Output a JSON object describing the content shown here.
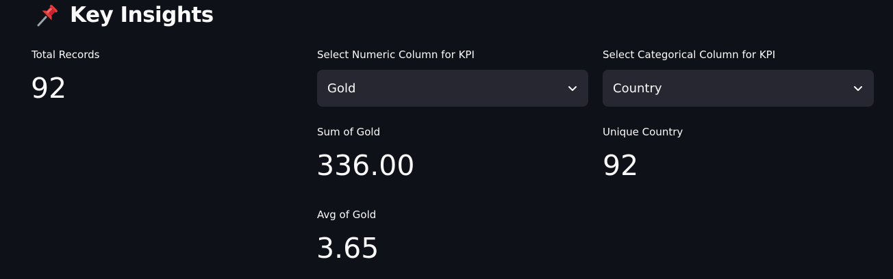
{
  "section": {
    "title": "Key Insights",
    "icon": "pushpin-icon"
  },
  "total_records": {
    "label": "Total Records",
    "value": "92"
  },
  "numeric_select": {
    "label": "Select Numeric Column for KPI",
    "selected": "Gold",
    "icon": "chevron-down-icon"
  },
  "categorical_select": {
    "label": "Select Categorical Column for KPI",
    "selected": "Country",
    "icon": "chevron-down-icon"
  },
  "sum_metric": {
    "label": "Sum of Gold",
    "value": "336.00"
  },
  "unique_metric": {
    "label": "Unique Country",
    "value": "92"
  },
  "avg_metric": {
    "label": "Avg of Gold",
    "value": "3.65"
  },
  "colors": {
    "background": "#0e1117",
    "text": "#fafafa",
    "select_background": "#262730",
    "pin_red": "#d7263d"
  }
}
